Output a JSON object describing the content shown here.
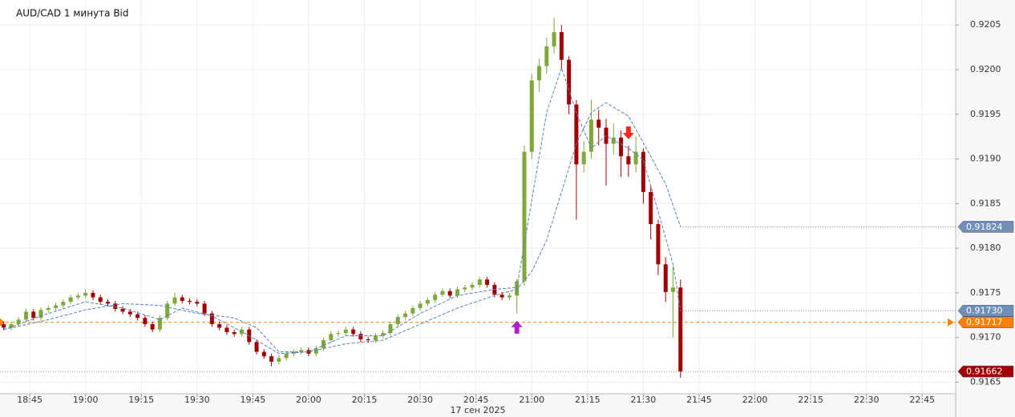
{
  "chart_data": {
    "type": "candlestick",
    "title": "AUD/CAD  1 минута Bid",
    "date_label": "17 сен 2025",
    "up_color": "#7fa83a",
    "down_color": "#a00000",
    "grid": true,
    "xlim": [
      "18:37",
      "22:54"
    ],
    "xticks": [
      "18:45",
      "19:00",
      "19:15",
      "19:30",
      "19:45",
      "20:00",
      "20:15",
      "20:30",
      "20:45",
      "21:00",
      "21:15",
      "21:30",
      "21:45",
      "22:00",
      "22:15",
      "22:30",
      "22:45"
    ],
    "ylim": [
      0.91637,
      0.92078
    ],
    "yticks": [
      0.9165,
      {
        "value": 0.917,
        "label": "0.9170"
      },
      0.9175,
      {
        "value": 0.918,
        "label": "0.9180"
      },
      0.9185,
      {
        "value": 0.919,
        "label": "0.9190"
      },
      0.9195,
      {
        "value": 0.92,
        "label": "0.9200"
      },
      0.9205
    ],
    "x": [
      "18:38",
      "18:40",
      "18:42",
      "18:44",
      "18:46",
      "18:48",
      "18:50",
      "18:52",
      "18:54",
      "18:56",
      "18:58",
      "19:00",
      "19:02",
      "19:04",
      "19:06",
      "19:08",
      "19:10",
      "19:12",
      "19:14",
      "19:16",
      "19:18",
      "19:20",
      "19:22",
      "19:24",
      "19:26",
      "19:28",
      "19:30",
      "19:32",
      "19:34",
      "19:36",
      "19:38",
      "19:40",
      "19:42",
      "19:44",
      "19:46",
      "19:48",
      "19:50",
      "19:52",
      "19:54",
      "19:56",
      "19:58",
      "20:00",
      "20:02",
      "20:04",
      "20:06",
      "20:08",
      "20:10",
      "20:12",
      "20:14",
      "20:16",
      "20:18",
      "20:20",
      "20:22",
      "20:24",
      "20:26",
      "20:28",
      "20:30",
      "20:32",
      "20:34",
      "20:36",
      "20:38",
      "20:40",
      "20:42",
      "20:44",
      "20:46",
      "20:48",
      "20:50",
      "20:52",
      "20:54",
      "20:56",
      "20:58",
      "21:00",
      "21:02",
      "21:04",
      "21:06",
      "21:08",
      "21:10",
      "21:12",
      "21:14",
      "21:16",
      "21:18",
      "21:20",
      "21:22",
      "21:24",
      "21:26",
      "21:28",
      "21:30",
      "21:32",
      "21:34",
      "21:36",
      "21:38",
      "21:40"
    ],
    "candles": [
      [
        0.91715,
        0.91718,
        0.91708,
        0.91711
      ],
      [
        0.91711,
        0.91718,
        0.91708,
        0.91715
      ],
      [
        0.91715,
        0.91723,
        0.91712,
        0.9172
      ],
      [
        0.9172,
        0.91732,
        0.91717,
        0.91729
      ],
      [
        0.91729,
        0.91732,
        0.91719,
        0.91722
      ],
      [
        0.91722,
        0.91734,
        0.91719,
        0.91731
      ],
      [
        0.91731,
        0.91736,
        0.91728,
        0.91733
      ],
      [
        0.91733,
        0.91739,
        0.9173,
        0.91736
      ],
      [
        0.91736,
        0.91743,
        0.91733,
        0.9174
      ],
      [
        0.9174,
        0.91748,
        0.91737,
        0.91745
      ],
      [
        0.91745,
        0.9175,
        0.91742,
        0.91747
      ],
      [
        0.91747,
        0.91754,
        0.91744,
        0.9175
      ],
      [
        0.9175,
        0.91753,
        0.91742,
        0.91745
      ],
      [
        0.91745,
        0.91748,
        0.91737,
        0.9174
      ],
      [
        0.9174,
        0.91743,
        0.91735,
        0.91738
      ],
      [
        0.91738,
        0.91741,
        0.91729,
        0.91732
      ],
      [
        0.91732,
        0.91735,
        0.91726,
        0.91729
      ],
      [
        0.91729,
        0.91732,
        0.91723,
        0.91726
      ],
      [
        0.91726,
        0.91729,
        0.91719,
        0.91722
      ],
      [
        0.91722,
        0.91725,
        0.91712,
        0.91715
      ],
      [
        0.91715,
        0.91718,
        0.91706,
        0.91709
      ],
      [
        0.91709,
        0.91725,
        0.91706,
        0.91722
      ],
      [
        0.91722,
        0.91741,
        0.91719,
        0.91738
      ],
      [
        0.91738,
        0.9175,
        0.91735,
        0.91745
      ],
      [
        0.91745,
        0.91748,
        0.91738,
        0.91741
      ],
      [
        0.91741,
        0.91744,
        0.91737,
        0.9174
      ],
      [
        0.9174,
        0.91743,
        0.91735,
        0.91738
      ],
      [
        0.91738,
        0.91741,
        0.91724,
        0.91727
      ],
      [
        0.91727,
        0.9173,
        0.91712,
        0.91715
      ],
      [
        0.91715,
        0.91718,
        0.91708,
        0.91711
      ],
      [
        0.91711,
        0.91714,
        0.91703,
        0.91706
      ],
      [
        0.91706,
        0.91709,
        0.91701,
        0.91704
      ],
      [
        0.91704,
        0.91712,
        0.91701,
        0.91709
      ],
      [
        0.91709,
        0.91712,
        0.91692,
        0.91695
      ],
      [
        0.91695,
        0.91698,
        0.91681,
        0.91684
      ],
      [
        0.91684,
        0.91687,
        0.91676,
        0.91679
      ],
      [
        0.91679,
        0.91682,
        0.91668,
        0.91673
      ],
      [
        0.91673,
        0.9168,
        0.9167,
        0.91677
      ],
      [
        0.91677,
        0.91685,
        0.91674,
        0.91682
      ],
      [
        0.91682,
        0.91687,
        0.91679,
        0.91684
      ],
      [
        0.91684,
        0.91689,
        0.91681,
        0.91686
      ],
      [
        0.91686,
        0.91689,
        0.91679,
        0.91682
      ],
      [
        0.91682,
        0.91691,
        0.91679,
        0.91688
      ],
      [
        0.91688,
        0.917,
        0.91685,
        0.91697
      ],
      [
        0.91697,
        0.91707,
        0.91694,
        0.91704
      ],
      [
        0.91704,
        0.91708,
        0.91701,
        0.91705
      ],
      [
        0.91705,
        0.91712,
        0.91702,
        0.91709
      ],
      [
        0.91709,
        0.91712,
        0.91701,
        0.91704
      ],
      [
        0.91704,
        0.91707,
        0.91695,
        0.91698
      ],
      [
        0.91698,
        0.91701,
        0.91694,
        0.91697
      ],
      [
        0.91697,
        0.91705,
        0.91694,
        0.91702
      ],
      [
        0.91702,
        0.91708,
        0.91699,
        0.91705
      ],
      [
        0.91705,
        0.91718,
        0.91702,
        0.91715
      ],
      [
        0.91715,
        0.91726,
        0.91712,
        0.91723
      ],
      [
        0.91723,
        0.9173,
        0.9172,
        0.91727
      ],
      [
        0.91727,
        0.91736,
        0.91724,
        0.91733
      ],
      [
        0.91733,
        0.91741,
        0.9173,
        0.91738
      ],
      [
        0.91738,
        0.91745,
        0.91735,
        0.91742
      ],
      [
        0.91742,
        0.91751,
        0.91739,
        0.91748
      ],
      [
        0.91748,
        0.91755,
        0.91745,
        0.91752
      ],
      [
        0.91752,
        0.91755,
        0.91744,
        0.91747
      ],
      [
        0.91747,
        0.91757,
        0.91744,
        0.91754
      ],
      [
        0.91754,
        0.91759,
        0.91751,
        0.91756
      ],
      [
        0.91756,
        0.91762,
        0.91753,
        0.91759
      ],
      [
        0.91759,
        0.91768,
        0.91756,
        0.91765
      ],
      [
        0.91765,
        0.91768,
        0.91756,
        0.91759
      ],
      [
        0.91759,
        0.91762,
        0.91745,
        0.91748
      ],
      [
        0.91748,
        0.91751,
        0.91742,
        0.91745
      ],
      [
        0.91745,
        0.9175,
        0.91742,
        0.91747
      ],
      [
        0.91747,
        0.91766,
        0.91727,
        0.91763
      ],
      [
        0.91763,
        0.91915,
        0.91758,
        0.91908
      ],
      [
        0.91908,
        0.91995,
        0.919,
        0.91988
      ],
      [
        0.91988,
        0.92012,
        0.91975,
        0.92004
      ],
      [
        0.92004,
        0.92036,
        0.91995,
        0.92026
      ],
      [
        0.92026,
        0.92058,
        0.92018,
        0.92042
      ],
      [
        0.92042,
        0.9205,
        0.92,
        0.92011
      ],
      [
        0.92011,
        0.92015,
        0.9195,
        0.91961
      ],
      [
        0.91961,
        0.91966,
        0.91832,
        0.91894
      ],
      [
        0.91894,
        0.9192,
        0.91885,
        0.91908
      ],
      [
        0.91908,
        0.91966,
        0.919,
        0.91944
      ],
      [
        0.91944,
        0.91955,
        0.91915,
        0.91935
      ],
      [
        0.91935,
        0.91945,
        0.9187,
        0.91917
      ],
      [
        0.91917,
        0.9194,
        0.91905,
        0.91924
      ],
      [
        0.91924,
        0.91932,
        0.9188,
        0.91903
      ],
      [
        0.91903,
        0.91915,
        0.9188,
        0.91894
      ],
      [
        0.91894,
        0.91925,
        0.91885,
        0.91908
      ],
      [
        0.91908,
        0.91912,
        0.9185,
        0.91863
      ],
      [
        0.91863,
        0.9187,
        0.9181,
        0.91827
      ],
      [
        0.91827,
        0.91832,
        0.9177,
        0.91782
      ],
      [
        0.91782,
        0.9179,
        0.9174,
        0.91751
      ],
      [
        0.91751,
        0.9178,
        0.917,
        0.91756
      ],
      [
        0.91756,
        0.91765,
        0.91655,
        0.91662
      ]
    ],
    "last_price_label": "0.91662",
    "moving_averages": [
      {
        "color": "#5a7fc0",
        "tag_color": "#6f8fb8",
        "label": "0.91730",
        "x": [
          "18:38",
          "18:50",
          "19:00",
          "19:10",
          "19:20",
          "19:26",
          "19:34",
          "19:44",
          "19:52",
          "20:00",
          "20:10",
          "20:20",
          "20:30",
          "20:40",
          "20:50",
          "20:56",
          "21:00",
          "21:04",
          "21:08",
          "21:12",
          "21:16",
          "21:20",
          "21:26",
          "21:30",
          "21:34",
          "21:38",
          "21:40"
        ],
        "values": [
          0.91709,
          0.91727,
          0.9174,
          0.91733,
          0.9172,
          0.91733,
          0.91724,
          0.91702,
          0.91682,
          0.91684,
          0.91702,
          0.91702,
          0.91727,
          0.91747,
          0.91754,
          0.91756,
          0.91854,
          0.91952,
          0.92002,
          0.91952,
          0.91912,
          0.91926,
          0.91912,
          0.91899,
          0.91841,
          0.91782,
          0.9173
        ]
      },
      {
        "color": "#5a7fc0",
        "tag_color": "#6f8fb8",
        "label": "0.91824",
        "x": [
          "18:38",
          "18:50",
          "19:00",
          "19:10",
          "19:20",
          "19:30",
          "19:40",
          "19:46",
          "19:52",
          "20:00",
          "20:10",
          "20:20",
          "20:30",
          "20:40",
          "20:50",
          "20:56",
          "21:00",
          "21:04",
          "21:08",
          "21:12",
          "21:16",
          "21:20",
          "21:26",
          "21:32",
          "21:36",
          "21:40"
        ],
        "values": [
          0.91709,
          0.9172,
          0.91731,
          0.91738,
          0.91736,
          0.91727,
          0.91722,
          0.91711,
          0.91684,
          0.91684,
          0.91693,
          0.91697,
          0.91715,
          0.91733,
          0.91747,
          0.91754,
          0.91774,
          0.91809,
          0.91863,
          0.91917,
          0.91952,
          0.91963,
          0.91948,
          0.91903,
          0.91872,
          0.91824
        ]
      }
    ],
    "entry_level": {
      "value": 0.91717,
      "label": "0.91717",
      "color": "#ff8000"
    },
    "markers": [
      {
        "x": "20:56",
        "value": 0.91717,
        "direction": "up",
        "color": "#b020c8"
      },
      {
        "x": "21:26",
        "value": 0.91922,
        "direction": "down",
        "color": "#ff2a1a"
      }
    ]
  }
}
